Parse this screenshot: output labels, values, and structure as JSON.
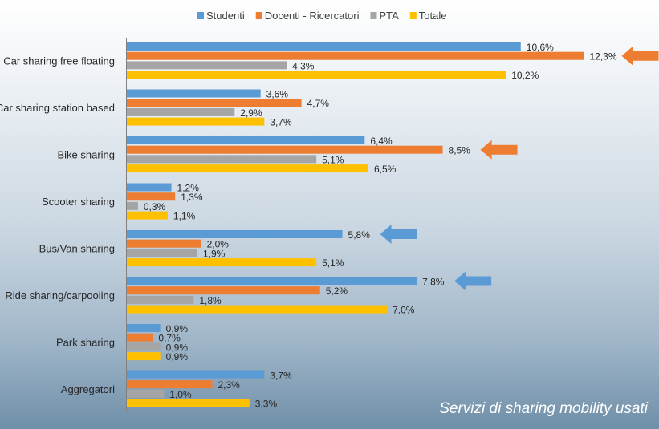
{
  "chart_data": {
    "type": "bar",
    "orientation": "horizontal",
    "title": "Servizi di sharing mobility usati",
    "categories": [
      "Car sharing free floating",
      "Car sharing station based",
      "Bike sharing",
      "Scooter sharing",
      "Bus/Van sharing",
      "Ride sharing/carpooling",
      "Park sharing",
      "Aggregatori"
    ],
    "series": [
      {
        "name": "Studenti",
        "color": "#5b9bd5",
        "values": [
          10.6,
          3.6,
          6.4,
          1.2,
          5.8,
          7.8,
          0.9,
          3.7
        ],
        "labels": [
          "10,6%",
          "3,6%",
          "6,4%",
          "1,2%",
          "5,8%",
          "7,8%",
          "0,9%",
          "3,7%"
        ]
      },
      {
        "name": "Docenti - Ricercatori",
        "color": "#ed7d31",
        "values": [
          12.3,
          4.7,
          8.5,
          1.3,
          2.0,
          5.2,
          0.7,
          2.3
        ],
        "labels": [
          "12,3%",
          "4,7%",
          "8,5%",
          "1,3%",
          "2,0%",
          "5,2%",
          "0,7%",
          "2,3%"
        ]
      },
      {
        "name": "PTA",
        "color": "#a5a5a5",
        "values": [
          4.3,
          2.9,
          5.1,
          0.3,
          1.9,
          1.8,
          0.9,
          1.0
        ],
        "labels": [
          "4,3%",
          "2,9%",
          "5,1%",
          "0,3%",
          "1,9%",
          "1,8%",
          "0,9%",
          "1,0%"
        ]
      },
      {
        "name": "Totale",
        "color": "#ffc000",
        "values": [
          10.2,
          3.7,
          6.5,
          1.1,
          5.1,
          7.0,
          0.9,
          3.3
        ],
        "labels": [
          "10,2%",
          "3,7%",
          "6,5%",
          "1,1%",
          "5,1%",
          "7,0%",
          "0,9%",
          "3,3%"
        ]
      }
    ],
    "xlim": [
      0,
      13
    ],
    "legend": "top-center",
    "grid": false,
    "annotations": [
      {
        "type": "arrow",
        "category": 0,
        "series": 1
      },
      {
        "type": "arrow",
        "category": 2,
        "series": 1
      },
      {
        "type": "arrow",
        "category": 4,
        "series": 0
      },
      {
        "type": "arrow",
        "category": 5,
        "series": 0
      }
    ]
  }
}
